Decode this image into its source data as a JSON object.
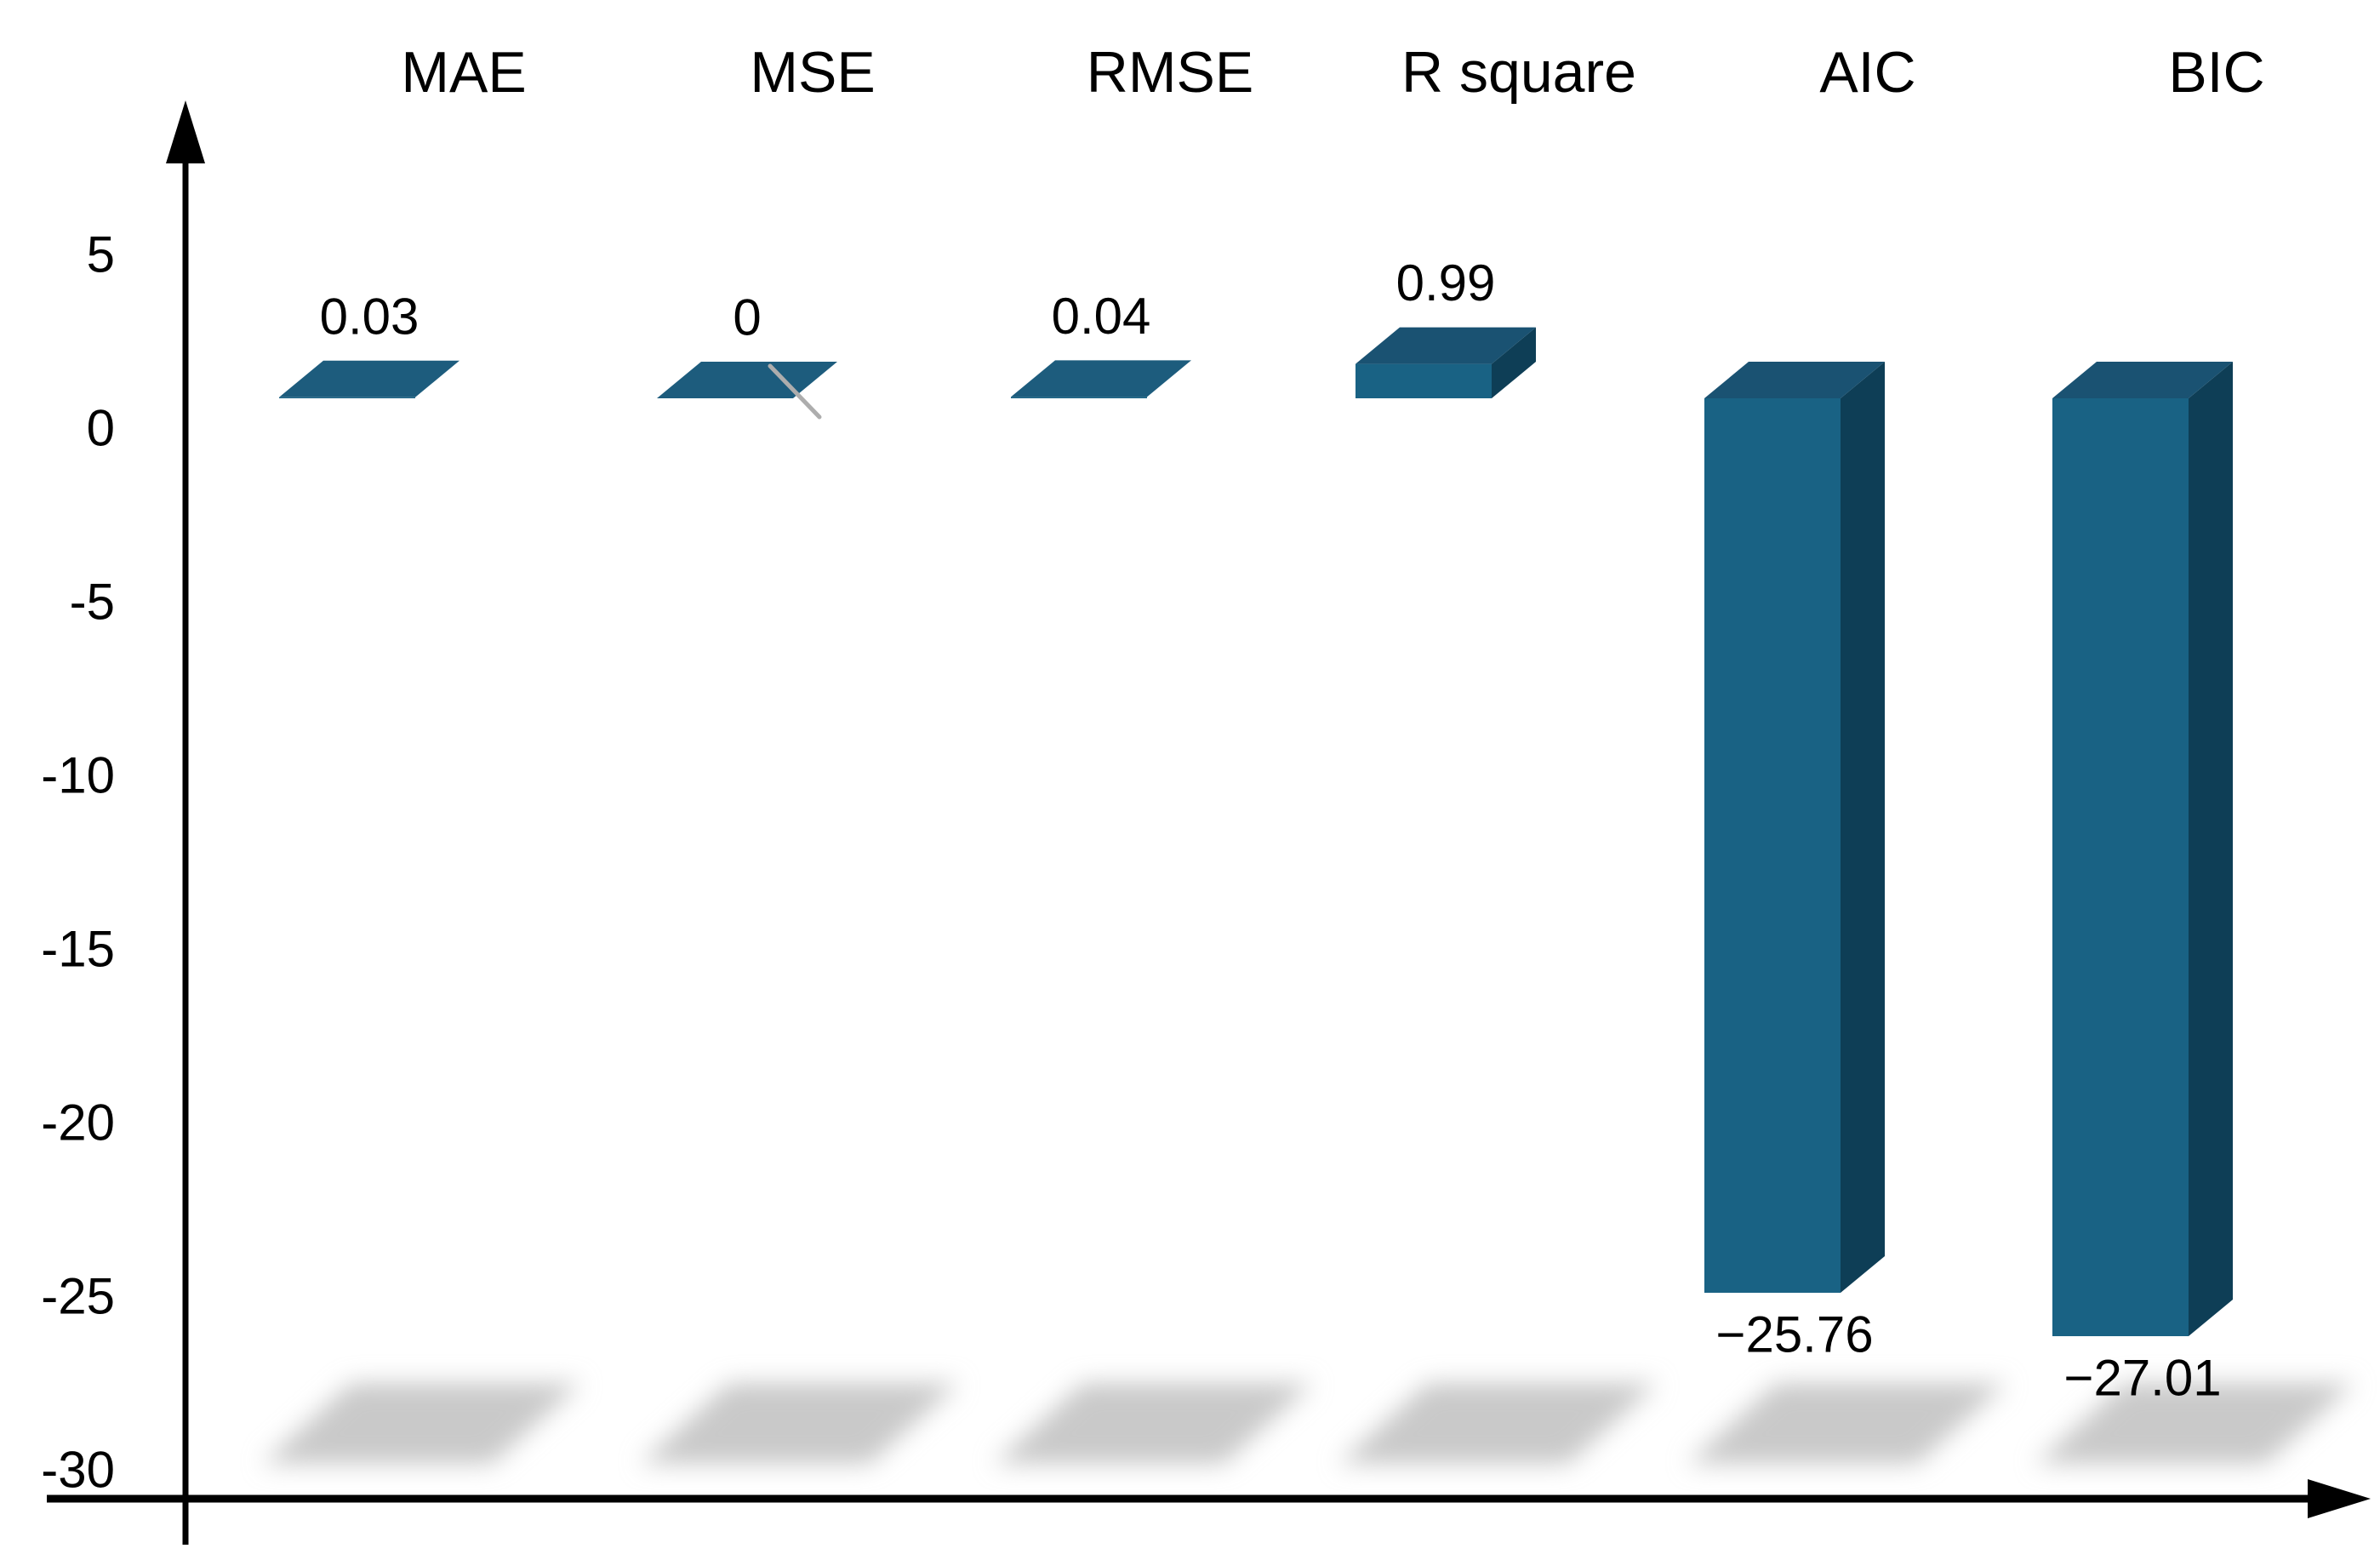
{
  "chart_data": {
    "type": "bar",
    "style": "3d-column",
    "title": "",
    "xlabel": "",
    "ylabel": "",
    "categories": [
      "MAE",
      "MSE",
      "RMSE",
      "R square",
      "AIC",
      "BIC"
    ],
    "values": [
      0.03,
      0,
      0.04,
      0.99,
      -25.76,
      -27.01
    ],
    "value_labels": [
      "0.03",
      "0",
      "0.04",
      "0.99",
      "−25.76",
      "−27.01"
    ],
    "y_axis": {
      "tick_values": [
        5,
        0,
        -5,
        -10,
        -15,
        -20,
        -25,
        -30
      ],
      "tick_labels": [
        "5",
        "0",
        "-5",
        "-10",
        "-15",
        "-20",
        "-25",
        "-30"
      ],
      "range_shown": [
        -30,
        7
      ]
    },
    "grid": false,
    "legend": false,
    "colors": {
      "bar_front": "#196284",
      "bar_top": "#1A5272",
      "bar_side": "#0E3E56",
      "flat_top": "#1D5C7D",
      "shadow": "#C9C9C9",
      "axis": "#000000",
      "text": "#000000",
      "artifact_line": "#ADADAD"
    }
  }
}
